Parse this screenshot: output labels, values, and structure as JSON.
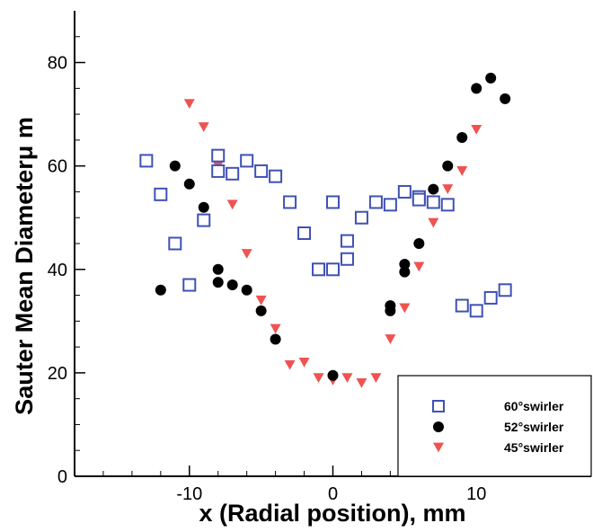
{
  "chart_data": {
    "type": "scatter",
    "xlabel": "x (Radial position), mm",
    "ylabel": "Sauter Mean Diameterμ m",
    "xlim": [
      -18,
      18
    ],
    "ylim": [
      0,
      90
    ],
    "xticks": [
      -10,
      0,
      10
    ],
    "xtick_labels": [
      "-10",
      "0",
      "10"
    ],
    "yticks": [
      0,
      20,
      40,
      60,
      80
    ],
    "ytick_labels": [
      "0",
      "20",
      "40",
      "60",
      "80"
    ],
    "grid": false,
    "legend_position": "bottom-right",
    "series": [
      {
        "name": "60°swirler",
        "marker": "open-square",
        "color": "#3f51b5",
        "points": [
          [
            -13,
            61
          ],
          [
            -12,
            54.5
          ],
          [
            -11,
            45
          ],
          [
            -10,
            37
          ],
          [
            -9,
            49.5
          ],
          [
            -8,
            62
          ],
          [
            -8,
            59
          ],
          [
            -7,
            58.5
          ],
          [
            -6,
            61
          ],
          [
            -5,
            59
          ],
          [
            -4,
            58
          ],
          [
            -3,
            53
          ],
          [
            -2,
            47
          ],
          [
            -1,
            40
          ],
          [
            0,
            40
          ],
          [
            0,
            53
          ],
          [
            1,
            45.5
          ],
          [
            1,
            42
          ],
          [
            2,
            50
          ],
          [
            3,
            53
          ],
          [
            4,
            52.5
          ],
          [
            5,
            55
          ],
          [
            6,
            54
          ],
          [
            6,
            53.5
          ],
          [
            7,
            53
          ],
          [
            8,
            52.5
          ],
          [
            9,
            33
          ],
          [
            10,
            32
          ],
          [
            11,
            34.5
          ],
          [
            12,
            36
          ]
        ]
      },
      {
        "name": "52°swirler",
        "marker": "filled-circle",
        "color": "#000000",
        "points": [
          [
            -12,
            36
          ],
          [
            -11,
            60
          ],
          [
            -10,
            56.5
          ],
          [
            -9,
            52
          ],
          [
            -8,
            40
          ],
          [
            -8,
            37.5
          ],
          [
            -7,
            37
          ],
          [
            -6,
            36
          ],
          [
            -5,
            32
          ],
          [
            -4,
            26.5
          ],
          [
            0,
            19.5
          ],
          [
            4,
            33
          ],
          [
            4,
            32
          ],
          [
            5,
            41
          ],
          [
            5,
            39.5
          ],
          [
            6,
            45
          ],
          [
            7,
            55.5
          ],
          [
            8,
            60
          ],
          [
            9,
            65.5
          ],
          [
            10,
            75
          ],
          [
            11,
            77
          ],
          [
            12,
            73
          ]
        ]
      },
      {
        "name": "45°swirler",
        "marker": "down-triangle",
        "color": "#ef5350",
        "points": [
          [
            -10,
            72
          ],
          [
            -9,
            67.5
          ],
          [
            -8,
            60
          ],
          [
            -7,
            52.5
          ],
          [
            -6,
            43
          ],
          [
            -5,
            34
          ],
          [
            -4,
            28.5
          ],
          [
            -3,
            21.5
          ],
          [
            -2,
            22
          ],
          [
            -1,
            19
          ],
          [
            0,
            18.5
          ],
          [
            1,
            19
          ],
          [
            2,
            18
          ],
          [
            3,
            19
          ],
          [
            4,
            26.5
          ],
          [
            5,
            32.5
          ],
          [
            6,
            40.5
          ],
          [
            7,
            49
          ],
          [
            8,
            55.5
          ],
          [
            9,
            59
          ],
          [
            10,
            67
          ]
        ]
      }
    ]
  }
}
